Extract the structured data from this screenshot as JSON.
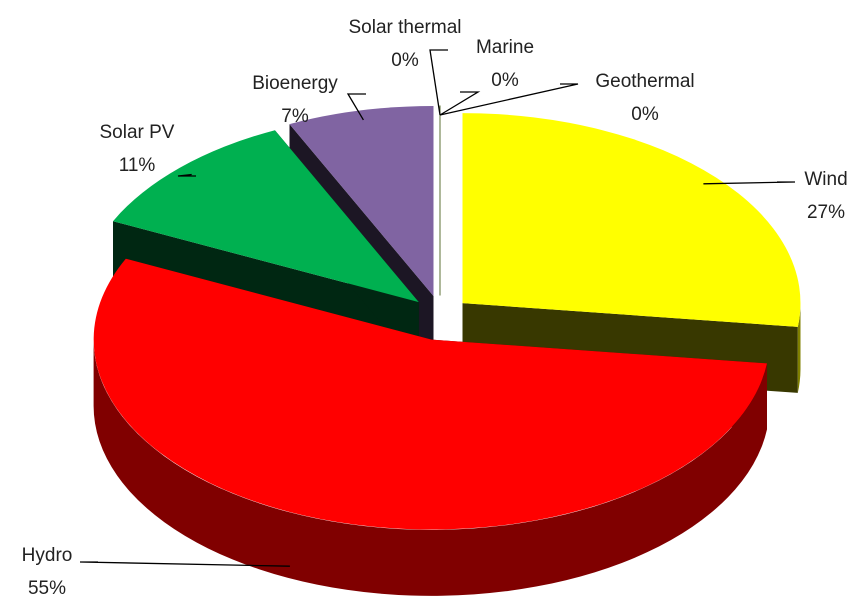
{
  "chart_data": {
    "type": "pie3d",
    "categories": [
      "Wind",
      "Hydro",
      "Solar PV",
      "Bioenergy",
      "Solar thermal",
      "Marine",
      "Geothermal"
    ],
    "values": [
      27,
      55,
      11,
      7,
      0,
      0,
      0
    ],
    "value_labels": [
      "27%",
      "55%",
      "11%",
      "7%",
      "0%",
      "0%",
      "0%"
    ],
    "colors": [
      "#ffff00",
      "#ff0000",
      "#00b050",
      "#8064a2",
      "#4f81bd",
      "#4bacc6",
      "#9bbb59"
    ]
  }
}
